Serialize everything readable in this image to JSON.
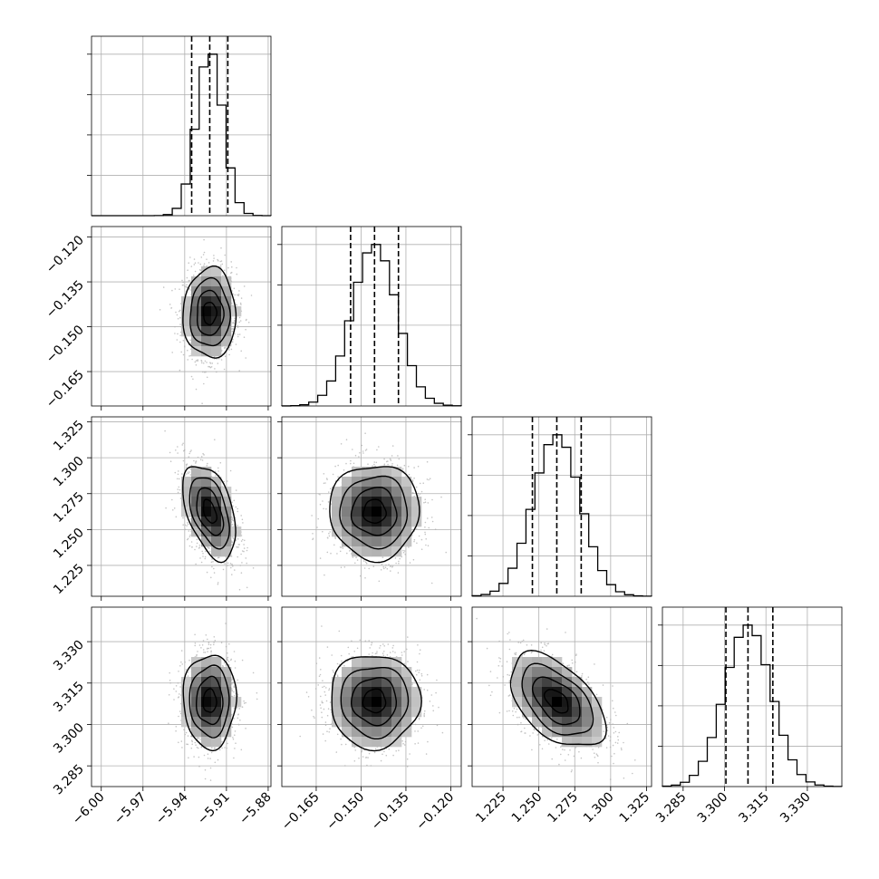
{
  "chart_data": {
    "type": "corner",
    "grid": true,
    "parameters": [
      {
        "mean": -5.922,
        "sd": 0.0095,
        "range": [
          -6.007,
          -5.878
        ],
        "quantiles": [
          -5.935,
          -5.922,
          -5.909
        ],
        "ticks": [
          -6.0,
          -5.97,
          -5.94,
          -5.91,
          -5.88
        ],
        "tick_labels": [
          "−6.00",
          "−5.97",
          "−5.94",
          "−5.91",
          "−5.88"
        ]
      },
      {
        "mean": -0.1455,
        "sd": 0.0075,
        "range": [
          -0.1765,
          -0.1165
        ],
        "quantiles": [
          -0.1535,
          -0.1455,
          -0.1375
        ],
        "ticks": [
          -0.165,
          -0.15,
          -0.135,
          -0.12
        ],
        "tick_labels": [
          "−0.165",
          "−0.150",
          "−0.135",
          "−0.120"
        ]
      },
      {
        "mean": 1.2625,
        "sd": 0.0165,
        "range": [
          1.2035,
          1.3285
        ],
        "quantiles": [
          1.2455,
          1.2625,
          1.2795
        ],
        "ticks": [
          1.225,
          1.25,
          1.275,
          1.3,
          1.325
        ],
        "tick_labels": [
          "1.225",
          "1.250",
          "1.275",
          "1.300",
          "1.325"
        ]
      },
      {
        "mean": 3.3085,
        "sd": 0.0085,
        "range": [
          3.2775,
          3.3425
        ],
        "quantiles": [
          3.3005,
          3.3085,
          3.3175
        ],
        "ticks": [
          3.285,
          3.3,
          3.315,
          3.33
        ],
        "tick_labels": [
          "3.285",
          "3.300",
          "3.315",
          "3.330"
        ]
      }
    ],
    "correlations": [
      {
        "pair": [
          0,
          1
        ],
        "rho": 0.0
      },
      {
        "pair": [
          0,
          2
        ],
        "rho": -0.45
      },
      {
        "pair": [
          1,
          2
        ],
        "rho": 0.0
      },
      {
        "pair": [
          0,
          3
        ],
        "rho": 0.0
      },
      {
        "pair": [
          1,
          3
        ],
        "rho": 0.0
      },
      {
        "pair": [
          2,
          3
        ],
        "rho": -0.5
      }
    ],
    "histogram_bins": 20,
    "contour_levels_sigma": [
      0.5,
      1.0,
      1.5,
      2.0
    ],
    "scatter_color": "#b0b0b0",
    "line_color": "#000000",
    "grid_color": "#b0b0b0"
  }
}
